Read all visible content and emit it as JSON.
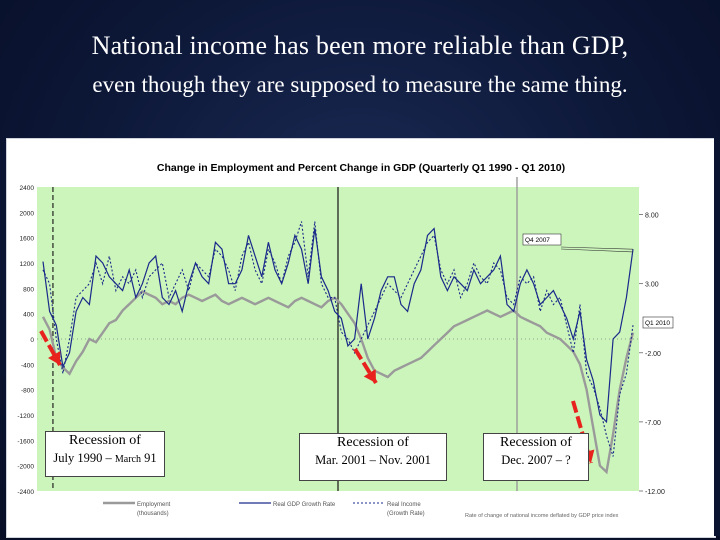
{
  "slide": {
    "title": "National income has been more reliable than GDP,",
    "subtitle": "even though they are supposed to measure the same thing."
  },
  "chart_data": {
    "type": "line",
    "title": "Change in Employment and Percent Change in GDP (Quarterly Q1 1990 - Q1 2010)",
    "x_range": [
      "Q1 1990",
      "Q1 2010"
    ],
    "y_left_ticks": [
      2400,
      2000,
      1600,
      1200,
      800,
      400,
      0,
      -400,
      -800,
      -1200,
      -1600,
      -2000,
      -2400
    ],
    "y_left_lim": [
      -2400,
      2400
    ],
    "y_right_ticks": [
      "8.00",
      "3.00",
      "-2.00",
      "-7.00",
      "-12.00"
    ],
    "y_right_lim": [
      -12,
      10
    ],
    "grid": false,
    "plot_background": "#ccf5bb",
    "series": [
      {
        "name": "Employment",
        "axis": "left",
        "color": "#9a9a9a",
        "style": "solid-thick",
        "values": [
          350,
          150,
          -300,
          -450,
          -550,
          -350,
          -200,
          0,
          -50,
          100,
          250,
          300,
          450,
          550,
          650,
          750,
          700,
          650,
          550,
          600,
          550,
          650,
          700,
          650,
          600,
          650,
          700,
          600,
          550,
          600,
          650,
          600,
          550,
          600,
          650,
          600,
          550,
          500,
          600,
          650,
          600,
          550,
          500,
          600,
          650,
          550,
          400,
          250,
          0,
          -300,
          -500,
          -550,
          -600,
          -500,
          -450,
          -400,
          -350,
          -300,
          -200,
          -100,
          0,
          100,
          200,
          250,
          300,
          350,
          400,
          450,
          400,
          350,
          400,
          450,
          350,
          300,
          250,
          200,
          100,
          50,
          0,
          -100,
          -200,
          -400,
          -800,
          -1400,
          -2000,
          -2100,
          -1500,
          -800,
          -300,
          100
        ]
      },
      {
        "name": "Real GDP Growth Rate",
        "axis": "right",
        "color": "#1a2a8a",
        "style": "solid",
        "values": [
          4.6,
          1.0,
          0.0,
          -3.0,
          -2.0,
          1.0,
          2.0,
          1.5,
          5.0,
          4.5,
          3.5,
          3.0,
          2.5,
          4.0,
          2.0,
          3.0,
          4.5,
          5.0,
          2.0,
          1.5,
          2.5,
          1.0,
          3.0,
          4.5,
          3.5,
          3.0,
          6.0,
          5.5,
          3.0,
          3.0,
          4.0,
          6.5,
          5.0,
          3.5,
          6.0,
          4.0,
          3.0,
          4.5,
          6.5,
          5.5,
          3.0,
          7.0,
          3.5,
          2.5,
          1.0,
          0.5,
          -1.5,
          -1.0,
          3.0,
          -1.0,
          0.5,
          2.5,
          3.5,
          3.5,
          1.5,
          1.0,
          3.0,
          4.0,
          6.5,
          7.0,
          3.5,
          2.5,
          3.5,
          3.0,
          2.5,
          4.0,
          3.0,
          3.5,
          4.0,
          5.0,
          1.5,
          1.0,
          3.0,
          4.0,
          3.0,
          1.5,
          2.0,
          2.5,
          1.5,
          0.5,
          -1.0,
          1.0,
          -2.5,
          -4.0,
          -6.5,
          -7.0,
          -1.0,
          -0.5,
          2.0,
          5.5
        ]
      },
      {
        "name": "Real Income",
        "axis": "right",
        "color": "#1a2a8a",
        "style": "dotted",
        "values": [
          4.0,
          3.0,
          -1.0,
          -3.5,
          -1.0,
          2.0,
          2.5,
          3.0,
          4.5,
          3.0,
          5.0,
          2.5,
          3.5,
          3.0,
          4.0,
          2.0,
          3.5,
          4.0,
          4.5,
          2.0,
          3.0,
          4.0,
          2.5,
          4.5,
          4.0,
          3.5,
          5.5,
          5.0,
          4.0,
          2.5,
          5.0,
          6.0,
          4.0,
          3.0,
          5.5,
          4.5,
          3.0,
          5.0,
          6.0,
          7.5,
          3.5,
          7.5,
          3.0,
          2.0,
          2.0,
          -0.5,
          -1.0,
          -2.0,
          -1.0,
          0.0,
          1.0,
          2.0,
          3.0,
          2.5,
          2.0,
          3.0,
          4.0,
          5.0,
          6.0,
          6.5,
          4.0,
          3.0,
          4.0,
          2.0,
          3.0,
          4.5,
          3.5,
          3.0,
          4.5,
          4.0,
          2.0,
          1.5,
          3.5,
          3.0,
          3.5,
          1.0,
          2.5,
          1.5,
          2.0,
          0.0,
          -2.0,
          1.5,
          -3.5,
          -4.5,
          -6.0,
          -8.0,
          -9.5,
          -5.0,
          -3.5,
          0.0
        ]
      }
    ],
    "callouts": [
      {
        "label": "Q4 2007"
      },
      {
        "label": "Q1 2010"
      }
    ],
    "legend": {
      "placement": "bottom",
      "entries": [
        {
          "line1": "Employment",
          "line2": "(thousands)"
        },
        {
          "line1": "Real GDP Growth Rate",
          "line2": ""
        },
        {
          "line1": "Real Income",
          "line2": "(Growth Rate)"
        },
        {
          "line1": "Rate of change of national income deflated by GDP price index",
          "line2": ""
        }
      ]
    },
    "recessions": [
      {
        "title": "Recession of",
        "range_prefix": "July 1990",
        "range_sep": " – ",
        "range_suffix_small": "March",
        "range_suffix": " 91"
      },
      {
        "title": "Recession of",
        "range_prefix": "Mar. 2001",
        "range_sep": " – ",
        "range_suffix_small": "",
        "range_suffix": "Nov. 2001"
      },
      {
        "title": "Recession of",
        "range_prefix": "Dec. 2007",
        "range_sep": " – ",
        "range_suffix_small": "",
        "range_suffix": "?"
      }
    ],
    "colors": {
      "arrow": "#e8231d",
      "recession_line": "#222222",
      "current_line": "#9a9a9a"
    }
  }
}
